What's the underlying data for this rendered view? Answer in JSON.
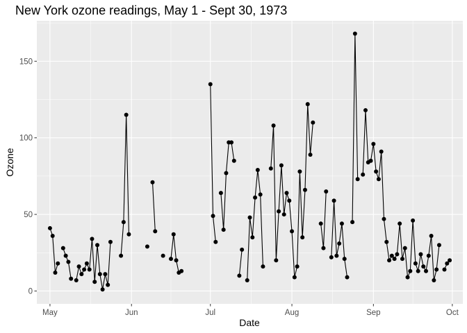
{
  "chart_data": {
    "type": "line",
    "title": "New York ozone readings, May 1 - Sept 30, 1973",
    "xlabel": "Date",
    "ylabel": "Ozone",
    "x_tick_labels": [
      {
        "label": "May",
        "date": "1973-05-01"
      },
      {
        "label": "Jun",
        "date": "1973-06-01"
      },
      {
        "label": "Jul",
        "date": "1973-07-01"
      },
      {
        "label": "Aug",
        "date": "1973-08-01"
      },
      {
        "label": "Sep",
        "date": "1973-09-01"
      },
      {
        "label": "Oct",
        "date": "1973-10-01"
      }
    ],
    "y_ticks": [
      0,
      50,
      100,
      150
    ],
    "xlim": [
      "1973-04-26",
      "1973-10-05"
    ],
    "ylim": [
      -8.4,
      176.4
    ],
    "grid": true,
    "background": "#ebebeb",
    "grid_color": "#ffffff",
    "line_color": "#000000",
    "point_color": "#000000",
    "series": [
      {
        "x": [
          "1973-05-01",
          "1973-05-02",
          "1973-05-03",
          "1973-05-04",
          "1973-05-05",
          "1973-05-06",
          "1973-05-07",
          "1973-05-08",
          "1973-05-09",
          "1973-05-10",
          "1973-05-11",
          "1973-05-12",
          "1973-05-13",
          "1973-05-14",
          "1973-05-15",
          "1973-05-16",
          "1973-05-17",
          "1973-05-18",
          "1973-05-19",
          "1973-05-20",
          "1973-05-21",
          "1973-05-22",
          "1973-05-23",
          "1973-05-24",
          "1973-05-25",
          "1973-05-26",
          "1973-05-27",
          "1973-05-28",
          "1973-05-29",
          "1973-05-30",
          "1973-05-31",
          "1973-06-01",
          "1973-06-02",
          "1973-06-03",
          "1973-06-04",
          "1973-06-05",
          "1973-06-06",
          "1973-06-07",
          "1973-06-08",
          "1973-06-09",
          "1973-06-10",
          "1973-06-11",
          "1973-06-12",
          "1973-06-13",
          "1973-06-14",
          "1973-06-15",
          "1973-06-16",
          "1973-06-17",
          "1973-06-18",
          "1973-06-19",
          "1973-06-20",
          "1973-06-21",
          "1973-06-22",
          "1973-06-23",
          "1973-06-24",
          "1973-06-25",
          "1973-06-26",
          "1973-06-27",
          "1973-06-28",
          "1973-06-29",
          "1973-06-30",
          "1973-07-01",
          "1973-07-02",
          "1973-07-03",
          "1973-07-04",
          "1973-07-05",
          "1973-07-06",
          "1973-07-07",
          "1973-07-08",
          "1973-07-09",
          "1973-07-10",
          "1973-07-11",
          "1973-07-12",
          "1973-07-13",
          "1973-07-14",
          "1973-07-15",
          "1973-07-16",
          "1973-07-17",
          "1973-07-18",
          "1973-07-19",
          "1973-07-20",
          "1973-07-21",
          "1973-07-22",
          "1973-07-23",
          "1973-07-24",
          "1973-07-25",
          "1973-07-26",
          "1973-07-27",
          "1973-07-28",
          "1973-07-29",
          "1973-07-30",
          "1973-07-31",
          "1973-08-01",
          "1973-08-02",
          "1973-08-03",
          "1973-08-04",
          "1973-08-05",
          "1973-08-06",
          "1973-08-07",
          "1973-08-08",
          "1973-08-09",
          "1973-08-10",
          "1973-08-11",
          "1973-08-12",
          "1973-08-13",
          "1973-08-14",
          "1973-08-15",
          "1973-08-16",
          "1973-08-17",
          "1973-08-18",
          "1973-08-19",
          "1973-08-20",
          "1973-08-21",
          "1973-08-22",
          "1973-08-23",
          "1973-08-24",
          "1973-08-25",
          "1973-08-26",
          "1973-08-27",
          "1973-08-28",
          "1973-08-29",
          "1973-08-30",
          "1973-08-31",
          "1973-09-01",
          "1973-09-02",
          "1973-09-03",
          "1973-09-04",
          "1973-09-05",
          "1973-09-06",
          "1973-09-07",
          "1973-09-08",
          "1973-09-09",
          "1973-09-10",
          "1973-09-11",
          "1973-09-12",
          "1973-09-13",
          "1973-09-14",
          "1973-09-15",
          "1973-09-16",
          "1973-09-17",
          "1973-09-18",
          "1973-09-19",
          "1973-09-20",
          "1973-09-21",
          "1973-09-22",
          "1973-09-23",
          "1973-09-24",
          "1973-09-25",
          "1973-09-26",
          "1973-09-27",
          "1973-09-28",
          "1973-09-29",
          "1973-09-30"
        ],
        "y": [
          41,
          36,
          12,
          18,
          null,
          28,
          23,
          19,
          8,
          null,
          7,
          16,
          11,
          14,
          18,
          14,
          34,
          6,
          30,
          11,
          1,
          11,
          4,
          32,
          null,
          null,
          null,
          23,
          45,
          115,
          37,
          null,
          null,
          null,
          null,
          null,
          null,
          29,
          null,
          71,
          39,
          null,
          null,
          23,
          null,
          null,
          21,
          37,
          20,
          12,
          13,
          null,
          null,
          null,
          null,
          null,
          null,
          null,
          null,
          null,
          null,
          135,
          49,
          32,
          null,
          64,
          40,
          77,
          97,
          97,
          85,
          null,
          10,
          27,
          null,
          7,
          48,
          35,
          61,
          79,
          63,
          16,
          null,
          null,
          80,
          108,
          20,
          52,
          82,
          50,
          64,
          59,
          39,
          9,
          16,
          78,
          35,
          66,
          122,
          89,
          110,
          null,
          null,
          44,
          28,
          65,
          null,
          22,
          59,
          23,
          31,
          44,
          21,
          9,
          null,
          45,
          168,
          73,
          null,
          76,
          118,
          84,
          85,
          96,
          78,
          73,
          91,
          47,
          32,
          20,
          23,
          21,
          24,
          44,
          21,
          28,
          9,
          13,
          46,
          18,
          13,
          24,
          16,
          13,
          23,
          36,
          7,
          14,
          30,
          null,
          14,
          18,
          20
        ]
      }
    ]
  }
}
